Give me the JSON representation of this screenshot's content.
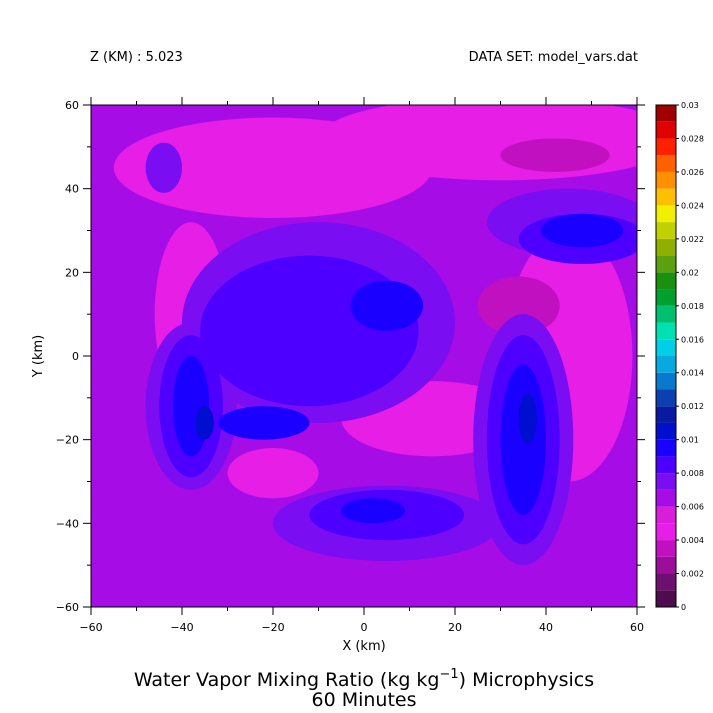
{
  "header": {
    "level_label": "Z (KM) : 5.023",
    "dataset_label": "DATA SET: model_vars.dat"
  },
  "title": {
    "line1_pre": "Water Vapor Mixing Ratio (kg kg",
    "line1_sup": "−1",
    "line1_post": ") Microphysics",
    "line2": "60 Minutes"
  },
  "chart_data": {
    "type": "heatmap",
    "xlabel": "X (km)",
    "ylabel": "Y (km)",
    "xlim": [
      -60,
      60
    ],
    "ylim": [
      -60,
      60
    ],
    "x_ticks": [
      -60,
      -40,
      -20,
      0,
      20,
      40,
      60
    ],
    "y_ticks": [
      -60,
      -40,
      -20,
      0,
      20,
      40,
      60
    ],
    "x_minor_step": 10,
    "y_minor_step": 10,
    "colorbar": {
      "levels": [
        0,
        0.001,
        0.002,
        0.003,
        0.004,
        0.005,
        0.006,
        0.007,
        0.008,
        0.009,
        0.01,
        0.011,
        0.012,
        0.013,
        0.014,
        0.015,
        0.016,
        0.017,
        0.018,
        0.019,
        0.02,
        0.021,
        0.022,
        0.023,
        0.024,
        0.025,
        0.026,
        0.027,
        0.028,
        0.029,
        0.03
      ],
      "labels": [
        "0",
        "0.002",
        "0.004",
        "0.006",
        "0.008",
        "0.01",
        "0.012",
        "0.014",
        "0.016",
        "0.018",
        "0.02",
        "0.022",
        "0.024",
        "0.026",
        "0.028",
        "0.03"
      ],
      "colors": [
        "#4d0d4d",
        "#6e1070",
        "#9a0e9a",
        "#c010c0",
        "#e61ee6",
        "#d91ed9",
        "#a60de6",
        "#7a0df2",
        "#4d00ff",
        "#1a00ff",
        "#000ed0",
        "#0a1aa0",
        "#0a40b0",
        "#0a78cc",
        "#0aa8e0",
        "#00cfe6",
        "#00e0b0",
        "#00c070",
        "#00a030",
        "#1a9010",
        "#5aa010",
        "#8fb000",
        "#c0d000",
        "#f0f000",
        "#ffc000",
        "#ff9000",
        "#ff6000",
        "#ff2000",
        "#e00000",
        "#a00000"
      ]
    },
    "value_regions": [
      {
        "level": 0.0062,
        "shape": "domain"
      },
      {
        "level": 0.0048,
        "cx": -20,
        "cy": 45,
        "rx": 35,
        "ry": 12
      },
      {
        "level": 0.0048,
        "cx": 30,
        "cy": 52,
        "rx": 40,
        "ry": 10
      },
      {
        "level": 0.0048,
        "cx": -38,
        "cy": 10,
        "rx": 8,
        "ry": 22
      },
      {
        "level": 0.0048,
        "cx": 45,
        "cy": 0,
        "rx": 14,
        "ry": 30
      },
      {
        "level": 0.0048,
        "cx": 15,
        "cy": -15,
        "rx": 20,
        "ry": 9
      },
      {
        "level": 0.0048,
        "cx": -20,
        "cy": -28,
        "rx": 10,
        "ry": 6
      },
      {
        "level": 0.0035,
        "cx": -32,
        "cy": 12,
        "rx": 4,
        "ry": 9
      },
      {
        "level": 0.0035,
        "cx": 34,
        "cy": 12,
        "rx": 9,
        "ry": 7
      },
      {
        "level": 0.0035,
        "cx": 42,
        "cy": 48,
        "rx": 12,
        "ry": 4
      },
      {
        "level": 0.0075,
        "cx": -10,
        "cy": 8,
        "rx": 30,
        "ry": 24
      },
      {
        "level": 0.0075,
        "cx": -38,
        "cy": -12,
        "rx": 10,
        "ry": 20
      },
      {
        "level": 0.0075,
        "cx": 35,
        "cy": -20,
        "rx": 11,
        "ry": 30
      },
      {
        "level": 0.0075,
        "cx": 45,
        "cy": 32,
        "rx": 18,
        "ry": 8
      },
      {
        "level": 0.0075,
        "cx": 5,
        "cy": -40,
        "rx": 25,
        "ry": 9
      },
      {
        "level": 0.0075,
        "cx": -44,
        "cy": 45,
        "rx": 4,
        "ry": 6
      },
      {
        "level": 0.0085,
        "cx": -12,
        "cy": 6,
        "rx": 24,
        "ry": 18
      },
      {
        "level": 0.0085,
        "cx": -38,
        "cy": -12,
        "rx": 7,
        "ry": 17
      },
      {
        "level": 0.0085,
        "cx": 35,
        "cy": -20,
        "rx": 8,
        "ry": 25
      },
      {
        "level": 0.0085,
        "cx": 48,
        "cy": 28,
        "rx": 14,
        "ry": 6
      },
      {
        "level": 0.0085,
        "cx": 5,
        "cy": -38,
        "rx": 17,
        "ry": 6
      },
      {
        "level": 0.0095,
        "cx": 5,
        "cy": 12,
        "rx": 8,
        "ry": 6
      },
      {
        "level": 0.0095,
        "cx": -22,
        "cy": -16,
        "rx": 10,
        "ry": 4
      },
      {
        "level": 0.0095,
        "cx": -38,
        "cy": -12,
        "rx": 4,
        "ry": 12
      },
      {
        "level": 0.0095,
        "cx": 35,
        "cy": -20,
        "rx": 5,
        "ry": 18
      },
      {
        "level": 0.0095,
        "cx": 48,
        "cy": 30,
        "rx": 9,
        "ry": 4
      },
      {
        "level": 0.0095,
        "cx": 2,
        "cy": -37,
        "rx": 7,
        "ry": 3
      },
      {
        "level": 0.0105,
        "cx": -35,
        "cy": -16,
        "rx": 2,
        "ry": 4
      },
      {
        "level": 0.0105,
        "cx": 36,
        "cy": -15,
        "rx": 2,
        "ry": 6
      }
    ]
  }
}
